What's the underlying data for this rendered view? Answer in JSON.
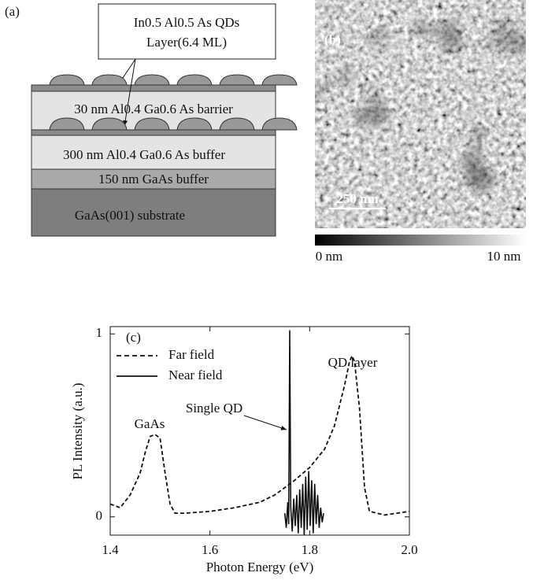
{
  "panel_a": {
    "label": "(a)",
    "callout": [
      "In0.5 Al0.5 As QDs",
      "Layer(6.4 ML)"
    ],
    "layers": [
      "30 nm Al0.4 Ga0.6 As barrier",
      "300 nm Al0.4 Ga0.6 As buffer",
      "150 nm GaAs buffer",
      "GaAs(001) substrate"
    ]
  },
  "panel_b": {
    "label": "(b)",
    "scale_bar": "250 nm",
    "colorbar_labels": [
      "0 nm",
      "10 nm"
    ]
  },
  "chart_data": {
    "type": "line",
    "panel_label": "(c)",
    "x_label": "Photon Energy (eV)",
    "y_label": "PL Intensity (a.u.)",
    "annotations": [
      "GaAs",
      "QD layer",
      "Single QD"
    ],
    "xlim": [
      1.4,
      2.0
    ],
    "ylim": [
      -0.1,
      1.04
    ],
    "xticks": [
      1.4,
      1.6,
      1.8,
      {
        "value": 2,
        "label": "2.0"
      }
    ],
    "yticks": [
      0,
      1
    ],
    "series": [
      {
        "name": "Far field",
        "color": "#111111",
        "style": "dashed",
        "x": [
          1.4,
          1.42,
          1.44,
          1.46,
          1.47,
          1.48,
          1.49,
          1.5,
          1.51,
          1.52,
          1.53,
          1.55,
          1.6,
          1.65,
          1.7,
          1.73,
          1.75,
          1.77,
          1.8,
          1.83,
          1.85,
          1.87,
          1.88,
          1.885,
          1.89,
          1.9,
          1.91,
          1.92,
          1.95,
          2.0
        ],
        "values": [
          0.07,
          0.05,
          0.12,
          0.24,
          0.35,
          0.44,
          0.45,
          0.43,
          0.24,
          0.07,
          0.02,
          0.02,
          0.03,
          0.05,
          0.08,
          0.12,
          0.16,
          0.2,
          0.27,
          0.37,
          0.5,
          0.72,
          0.85,
          0.88,
          0.85,
          0.59,
          0.16,
          0.03,
          0.01,
          0.03
        ]
      },
      {
        "name": "Near field",
        "color": "#111111",
        "style": "solid",
        "x": [
          1.75,
          1.753,
          1.756,
          1.758,
          1.76,
          1.762,
          1.765,
          1.768,
          1.771,
          1.774,
          1.777,
          1.78,
          1.783,
          1.786,
          1.789,
          1.792,
          1.795,
          1.798,
          1.801,
          1.804,
          1.807,
          1.81,
          1.813,
          1.816,
          1.819,
          1.822,
          1.825,
          1.828
        ],
        "values": [
          0.02,
          -0.06,
          0.08,
          -0.04,
          1.02,
          0.05,
          -0.08,
          0.1,
          -0.05,
          0.12,
          -0.09,
          0.15,
          -0.06,
          0.18,
          -0.1,
          0.22,
          -0.07,
          0.25,
          -0.05,
          0.2,
          -0.09,
          0.18,
          -0.04,
          0.12,
          -0.06,
          0.05,
          -0.03,
          0.02
        ]
      }
    ]
  }
}
